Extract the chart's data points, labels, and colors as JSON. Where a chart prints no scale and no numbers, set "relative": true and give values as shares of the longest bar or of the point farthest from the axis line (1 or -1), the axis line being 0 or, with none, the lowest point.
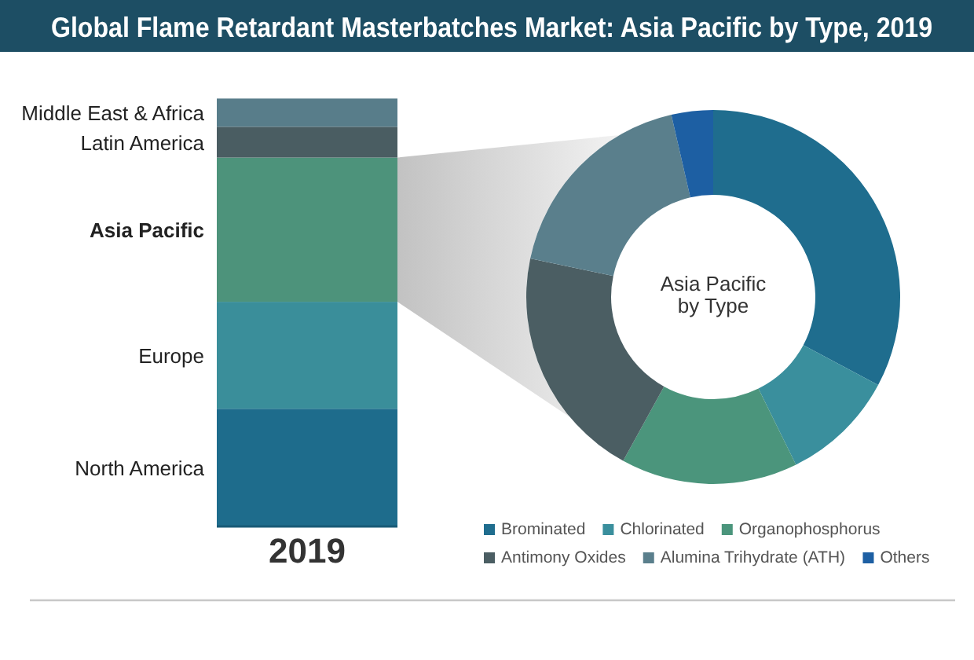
{
  "chart_data": [
    {
      "type": "bar",
      "title": "Global Flame Retardant Masterbatches Market: Asia Pacific by Type, 2019",
      "categories": [
        "2019"
      ],
      "stacked": true,
      "relative": true,
      "series": [
        {
          "name": "North America",
          "color": "#1e6c8c",
          "values": [
            0.275
          ]
        },
        {
          "name": "Europe",
          "color": "#3a8e9a",
          "values": [
            0.25
          ]
        },
        {
          "name": "Asia Pacific",
          "color": "#4d937b",
          "values": [
            0.337
          ]
        },
        {
          "name": "Latin America",
          "color": "#4a5d62",
          "values": [
            0.072
          ]
        },
        {
          "name": "Middle East & Africa",
          "color": "#587d8a",
          "values": [
            0.066
          ]
        }
      ]
    },
    {
      "type": "donut",
      "title": "Asia Pacific by Type",
      "categories": [
        "Brominated",
        "Chlorinated",
        "Organophosphorus",
        "Antimony Oxides",
        "Alumina Trihydrate (ATH)",
        "Others"
      ],
      "values": [
        32.8,
        9.9,
        15.3,
        20.3,
        18.1,
        3.6
      ],
      "colors": [
        "#1f6d8e",
        "#3a8f9d",
        "#4b957c",
        "#4b5e63",
        "#5a7f8c",
        "#1d5fa3"
      ],
      "legend": "bottom"
    }
  ]
}
